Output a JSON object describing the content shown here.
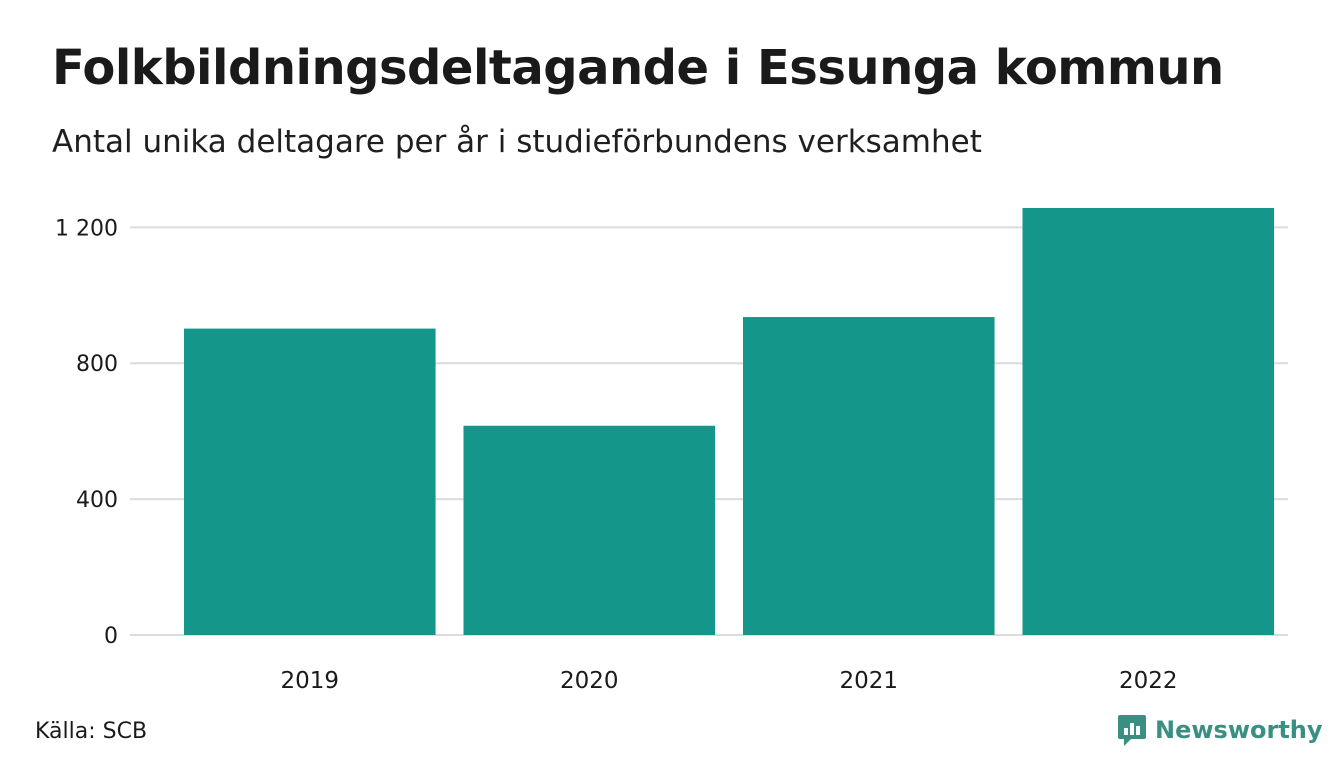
{
  "header": {
    "title": "Folkbildningsdeltagande i Essunga kommun",
    "subtitle": "Antal unika deltagare per år i studieförbundens verksamhet"
  },
  "footer": {
    "source": "Källa: SCB",
    "brand": "Newsworthy",
    "brand_color": "#3a8f83"
  },
  "chart_data": {
    "type": "bar",
    "title": "Folkbildningsdeltagande i Essunga kommun",
    "subtitle": "Antal unika deltagare per år i studieförbundens verksamhet",
    "categories": [
      "2019",
      "2020",
      "2021",
      "2022"
    ],
    "values": [
      902,
      616,
      936,
      1257
    ],
    "xlabel": "",
    "ylabel": "",
    "ylim": [
      0,
      1257
    ],
    "yticks": [
      0,
      400,
      800,
      1200
    ],
    "ytick_labels": [
      "0",
      "400",
      "800",
      "1 200"
    ],
    "grid": true,
    "legend": "none",
    "bar_color": "#14968a"
  }
}
